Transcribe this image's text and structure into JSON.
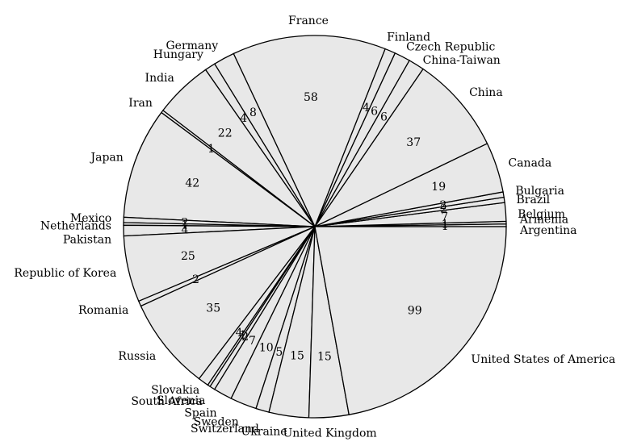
{
  "chart_data": {
    "type": "pie",
    "title": "",
    "start_angle_deg": 0,
    "direction": "counterclockwise",
    "fill_color": "#e8e8e8",
    "stroke_color": "#000000",
    "slices": [
      {
        "label": "Argentina",
        "value": 1
      },
      {
        "label": "Armenia",
        "value": 1
      },
      {
        "label": "Belgium",
        "value": 7
      },
      {
        "label": "Brazil",
        "value": 2
      },
      {
        "label": "Bulgaria",
        "value": 2
      },
      {
        "label": "Canada",
        "value": 19
      },
      {
        "label": "China",
        "value": 37
      },
      {
        "label": "China-Taiwan",
        "value": 6
      },
      {
        "label": "Czech Republic",
        "value": 6
      },
      {
        "label": "Finland",
        "value": 4
      },
      {
        "label": "France",
        "value": 58
      },
      {
        "label": "Germany",
        "value": 8
      },
      {
        "label": "Hungary",
        "value": 4
      },
      {
        "label": "India",
        "value": 22
      },
      {
        "label": "Iran",
        "value": 1
      },
      {
        "label": "Japan",
        "value": 42
      },
      {
        "label": "Mexico",
        "value": 2
      },
      {
        "label": "Netherlands",
        "value": 1
      },
      {
        "label": "Pakistan",
        "value": 4
      },
      {
        "label": "Republic of Korea",
        "value": 25
      },
      {
        "label": "Romania",
        "value": 2
      },
      {
        "label": "Russia",
        "value": 35
      },
      {
        "label": "Slovakia",
        "value": 4
      },
      {
        "label": "Slovenia",
        "value": 1
      },
      {
        "label": "South Africa",
        "value": 2
      },
      {
        "label": "Spain",
        "value": 7
      },
      {
        "label": "Sweden",
        "value": 10
      },
      {
        "label": "Switzerland",
        "value": 5
      },
      {
        "label": "Ukraine",
        "value": 15
      },
      {
        "label": "United Kingdom",
        "value": 15
      },
      {
        "label": "United States of America",
        "value": 99
      }
    ]
  }
}
